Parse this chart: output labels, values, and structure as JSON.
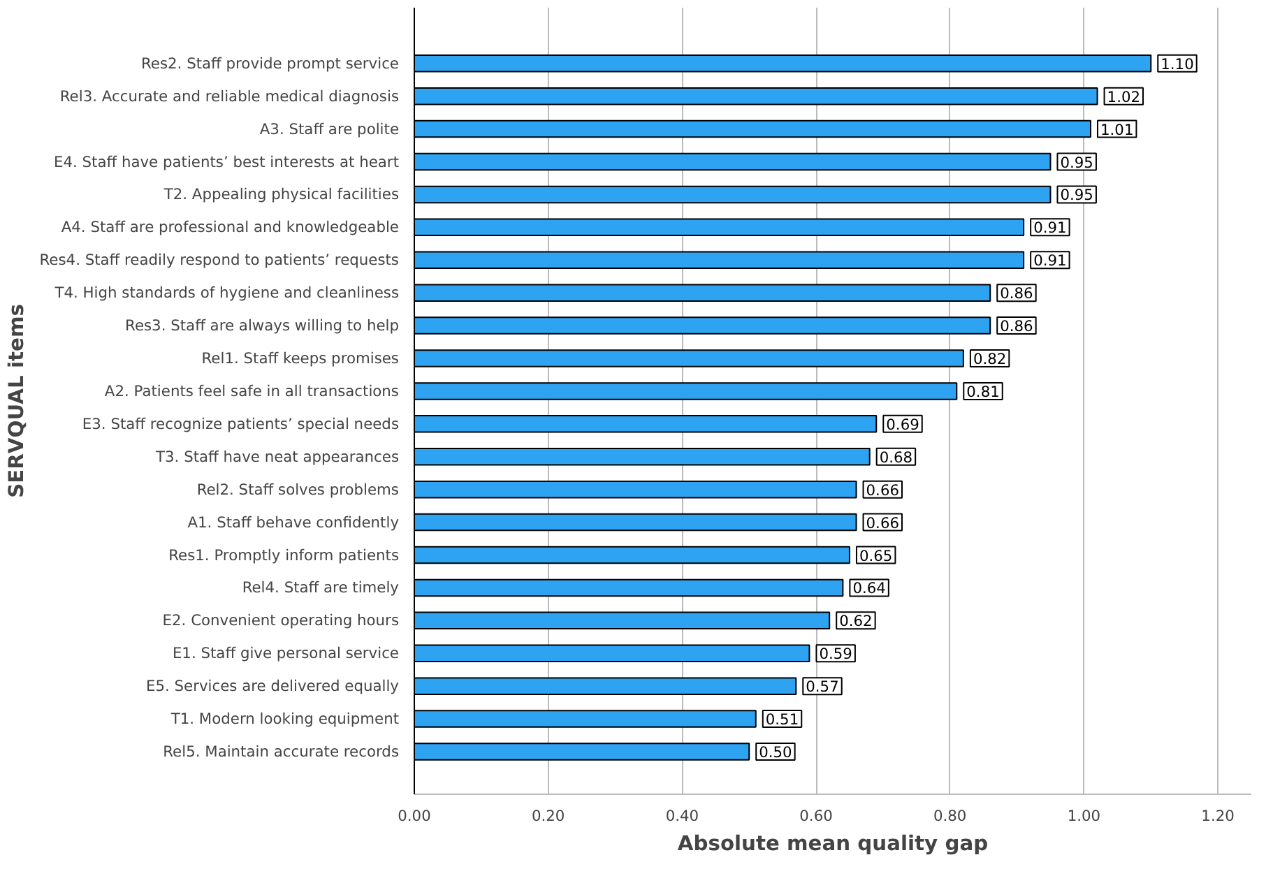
{
  "chart_data": {
    "type": "bar",
    "orientation": "horizontal",
    "xlabel": "Absolute mean quality gap",
    "ylabel": "SERVQUAL items",
    "categories": [
      "Res2. Staff provide prompt service",
      "Rel3. Accurate and reliable medical diagnosis",
      "A3. Staff are polite",
      "E4. Staff have patients’ best interests at heart",
      "T2. Appealing physical facilities",
      "A4. Staff are professional and knowledgeable",
      "Res4. Staff readily respond to patients’ requests",
      "T4. High standards of hygiene and cleanliness",
      "Res3. Staff are always willing to help",
      "Rel1. Staff keeps promises",
      "A2. Patients feel safe in all transactions",
      "E3. Staff recognize patients’ special needs",
      "T3. Staff have neat appearances",
      "Rel2. Staff solves problems",
      "A1. Staff behave confidently",
      "Res1. Promptly inform patients",
      "Rel4. Staff are timely",
      "E2. Convenient operating hours",
      "E1. Staff give personal service",
      "E5. Services are delivered equally",
      "T1. Modern looking equipment",
      "Rel5. Maintain accurate records"
    ],
    "values": [
      1.1,
      1.02,
      1.01,
      0.95,
      0.95,
      0.91,
      0.91,
      0.86,
      0.86,
      0.82,
      0.81,
      0.69,
      0.68,
      0.66,
      0.66,
      0.65,
      0.64,
      0.62,
      0.59,
      0.57,
      0.51,
      0.5
    ],
    "value_labels": [
      "1.10",
      "1.02",
      "1.01",
      "0.95",
      "0.95",
      "0.91",
      "0.91",
      "0.86",
      "0.86",
      "0.82",
      "0.81",
      "0.69",
      "0.68",
      "0.66",
      "0.66",
      "0.65",
      "0.64",
      "0.62",
      "0.59",
      "0.57",
      "0.51",
      "0.50"
    ],
    "color": "#2ea3f2",
    "grid": "x",
    "xlim": [
      0,
      1.25
    ],
    "xticks": [
      {
        "value": 0,
        "label": "0.00"
      },
      {
        "value": 0.2,
        "label": "0.20"
      },
      {
        "value": 0.4,
        "label": "0.40"
      },
      {
        "value": 0.6,
        "label": "0.60"
      },
      {
        "value": 0.8,
        "label": "0.80"
      },
      {
        "value": 1.0,
        "label": "1.00"
      },
      {
        "value": 1.2,
        "label": "1.20"
      }
    ]
  }
}
